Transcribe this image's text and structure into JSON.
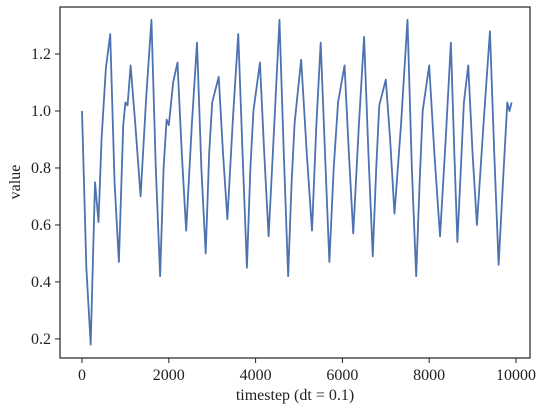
{
  "chart_data": {
    "type": "line",
    "xlabel": "timestep (dt = 0.1)",
    "ylabel": "value",
    "x": [
      0,
      100,
      200,
      300,
      380,
      450,
      550,
      650,
      750,
      850,
      950,
      1000,
      1050,
      1120,
      1230,
      1350,
      1480,
      1600,
      1700,
      1800,
      1880,
      1950,
      2000,
      2100,
      2200,
      2300,
      2400,
      2530,
      2650,
      2750,
      2850,
      2930,
      3000,
      3150,
      3250,
      3350,
      3480,
      3600,
      3700,
      3800,
      3880,
      3950,
      4100,
      4200,
      4300,
      4430,
      4550,
      4650,
      4750,
      4830,
      4900,
      5050,
      5180,
      5300,
      5400,
      5500,
      5600,
      5700,
      5800,
      5900,
      6050,
      6150,
      6250,
      6380,
      6500,
      6600,
      6700,
      6780,
      6850,
      7000,
      7100,
      7200,
      7350,
      7500,
      7600,
      7700,
      7780,
      7850,
      8000,
      8120,
      8250,
      8380,
      8500,
      8580,
      8650,
      8730,
      8800,
      8900,
      9000,
      9100,
      9250,
      9400,
      9500,
      9600,
      9700,
      9800,
      9850,
      9900
    ],
    "series": [
      {
        "name": "value",
        "color": "#4c72b0",
        "values": [
          1.0,
          0.45,
          0.18,
          0.75,
          0.61,
          0.9,
          1.15,
          1.27,
          0.75,
          0.47,
          0.95,
          1.03,
          1.02,
          1.16,
          0.95,
          0.7,
          1.05,
          1.32,
          0.8,
          0.42,
          0.8,
          0.97,
          0.95,
          1.1,
          1.17,
          0.85,
          0.58,
          0.95,
          1.24,
          0.8,
          0.5,
          0.85,
          1.03,
          1.12,
          0.85,
          0.62,
          0.98,
          1.27,
          0.85,
          0.45,
          0.8,
          1.0,
          1.17,
          0.85,
          0.56,
          0.95,
          1.32,
          0.85,
          0.42,
          0.75,
          0.96,
          1.18,
          0.85,
          0.58,
          0.95,
          1.24,
          0.85,
          0.47,
          0.8,
          1.03,
          1.16,
          0.85,
          0.57,
          0.95,
          1.26,
          0.85,
          0.49,
          0.8,
          1.02,
          1.11,
          0.9,
          0.64,
          0.95,
          1.32,
          0.8,
          0.42,
          0.75,
          1.0,
          1.16,
          0.85,
          0.56,
          0.9,
          1.24,
          0.85,
          0.54,
          0.8,
          1.03,
          1.16,
          0.85,
          0.6,
          0.95,
          1.28,
          0.85,
          0.46,
          0.75,
          1.03,
          1.0,
          1.03
        ]
      }
    ],
    "xlim": [
      -507,
      10323
    ],
    "ylim": [
      0.133,
      1.365
    ],
    "xticks": [
      0,
      2000,
      4000,
      6000,
      8000,
      10000
    ],
    "yticks": [
      0.2,
      0.4,
      0.6,
      0.8,
      {
        "value": 1,
        "label": "1.0"
      },
      1.2
    ]
  }
}
